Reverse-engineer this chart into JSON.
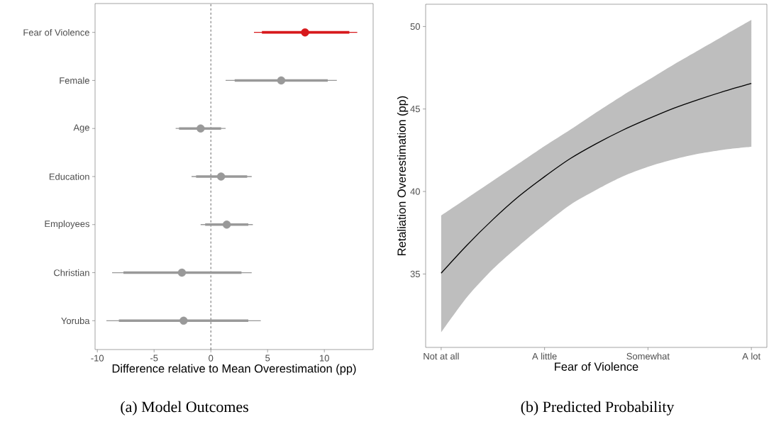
{
  "chart_data": [
    {
      "type": "scatter",
      "orientation": "horizontal",
      "categories": [
        "Fear of Violence",
        "Female",
        "Age",
        "Education",
        "Employees",
        "Christian",
        "Yoruba"
      ],
      "xlabel": "Difference relative to Mean Overestimation (pp)",
      "xlim": [
        -10.2,
        14.3
      ],
      "xticks": [
        -10,
        -5,
        0,
        5,
        10
      ],
      "ref_lines": [
        {
          "axis": "x",
          "value": 0,
          "color": "#666666",
          "line_style": "dashed"
        }
      ],
      "annotations": [
        "(a) Model Outcomes"
      ],
      "series": [
        {
          "type": "scatter",
          "marker": "circle",
          "values": [
            8.3,
            6.2,
            -0.9,
            0.9,
            1.4,
            -2.55,
            -2.4
          ],
          "errors": [
            [
              3.8,
              12.9
            ],
            [
              1.3,
              11.1
            ],
            [
              -3.1,
              1.3
            ],
            [
              -1.7,
              3.6
            ],
            [
              -0.9,
              3.7
            ],
            [
              -8.7,
              3.6
            ],
            [
              -9.2,
              4.4
            ]
          ],
          "colors": [
            "#d7191c",
            "#999999",
            "#999999",
            "#999999",
            "#999999",
            "#999999",
            "#999999"
          ]
        },
        {
          "type": "bar",
          "base": [
            4.5,
            2.1,
            -2.8,
            -1.3,
            -0.5,
            -7.7,
            -8.1
          ],
          "values": [
            7.7,
            8.2,
            3.7,
            4.5,
            3.8,
            10.4,
            11.4
          ],
          "colors": [
            "#d7191c",
            "#999999",
            "#999999",
            "#999999",
            "#999999",
            "#999999",
            "#999999"
          ]
        }
      ]
    },
    {
      "type": "line",
      "xlabel": "Fear of Violence",
      "ylabel": "Retaliation Overestimation (pp)",
      "ylim": [
        30.55,
        51.35
      ],
      "yticks": [
        35,
        40,
        45,
        50
      ],
      "annotations": [
        "(b) Predicted Probability"
      ],
      "categories": [
        "Not at all",
        null,
        null,
        null,
        "A little",
        null,
        null,
        null,
        "Somewhat",
        null,
        null,
        null,
        "A lot"
      ],
      "series": [
        {
          "color": "#000000",
          "values": [
            35.05,
            36.75,
            38.3,
            39.7,
            40.9,
            42.0,
            42.9,
            43.7,
            44.4,
            45.05,
            45.6,
            46.1,
            46.55
          ],
          "lower": [
            31.46,
            33.6,
            35.3,
            36.7,
            38.0,
            39.2,
            40.1,
            40.9,
            41.5,
            41.95,
            42.3,
            42.55,
            42.71
          ],
          "upper": [
            38.55,
            39.6,
            40.65,
            41.7,
            42.75,
            43.75,
            44.8,
            45.8,
            46.75,
            47.7,
            48.6,
            49.5,
            50.4
          ]
        }
      ]
    }
  ]
}
